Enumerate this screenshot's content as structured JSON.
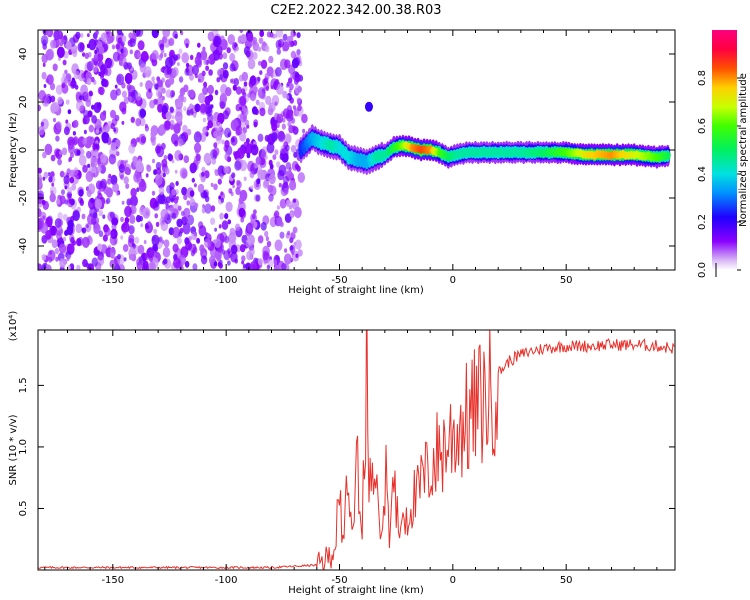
{
  "title": "C2E2.2022.342.00.38.R03",
  "chart_data": [
    {
      "type": "heatmap",
      "xlabel": "Height of straight line (km)",
      "ylabel": "Frequency (Hz)",
      "xlim": [
        -183,
        98
      ],
      "ylim": [
        -50,
        50
      ],
      "xticks": [
        -150,
        -100,
        -50,
        0,
        50
      ],
      "yticks": [
        -40,
        -20,
        0,
        20,
        40
      ],
      "colorbar": {
        "label": "Normalized spectral amplitude",
        "range": [
          0,
          1
        ],
        "ticks": [
          "0.0",
          "0.2",
          "0.4",
          "0.6",
          "0.8"
        ],
        "colormap": "rainbow (violet-blue-cyan-green-yellow-red-magenta)"
      },
      "noise_region": {
        "x": [
          -183,
          -67
        ],
        "frequency": [
          -50,
          50
        ]
      },
      "ridge": {
        "x": [
          -67,
          -62,
          -58,
          -54,
          -50,
          -46,
          -42,
          -38,
          -34,
          -30,
          -26,
          -22,
          -18,
          -14,
          -10,
          -6,
          -2,
          2,
          6,
          10,
          20,
          30,
          40,
          50,
          60,
          70,
          80,
          90,
          96
        ],
        "frequency": [
          0,
          5,
          3,
          2,
          1,
          -3,
          -4,
          -5,
          -3,
          -2,
          1,
          2,
          1,
          0,
          0,
          -1,
          -3,
          -2,
          -1,
          -1,
          -1,
          -1,
          -1,
          -1,
          -2,
          -2,
          -2,
          -3,
          -2
        ],
        "amplitude": [
          0.25,
          0.35,
          0.4,
          0.45,
          0.4,
          0.4,
          0.35,
          0.35,
          0.45,
          0.45,
          0.55,
          0.65,
          0.8,
          0.85,
          0.8,
          0.6,
          0.5,
          0.45,
          0.45,
          0.45,
          0.45,
          0.45,
          0.5,
          0.6,
          0.75,
          0.8,
          0.7,
          0.6,
          0.5
        ]
      },
      "blob": {
        "x": -37,
        "frequency": 18,
        "amplitude": 0.2
      }
    },
    {
      "type": "line",
      "xlabel": "Height of straight line (km)",
      "ylabel": "SNR (10 * v/v)",
      "yscale_label": "(x10⁴)",
      "xlim": [
        -183,
        98
      ],
      "ylim": [
        0,
        1.95
      ],
      "xticks": [
        -150,
        -100,
        -50,
        0,
        50
      ],
      "yticks": [
        0.5,
        1.0,
        1.5
      ],
      "color": "#e8302a",
      "series": [
        {
          "x": [
            -183,
            -120,
            -80,
            -70,
            -60,
            -55,
            -52,
            -50,
            -48,
            -46,
            -44,
            -42,
            -40,
            -38,
            -36,
            -34,
            -32,
            -30,
            -28,
            -26,
            -24,
            -22,
            -20,
            -18,
            -16,
            -14,
            -12,
            -10,
            -8,
            -6,
            -4,
            -2,
            0,
            2,
            4,
            6,
            8,
            10,
            12,
            15,
            18,
            20,
            25,
            30,
            35,
            40,
            50,
            60,
            70,
            80,
            90,
            98
          ],
          "values": [
            0.02,
            0.02,
            0.02,
            0.03,
            0.04,
            0.1,
            0.2,
            0.55,
            0.35,
            0.85,
            0.3,
            0.9,
            0.5,
            1.3,
            0.6,
            1.1,
            0.4,
            0.8,
            0.35,
            0.7,
            0.3,
            0.5,
            0.45,
            0.6,
            0.55,
            0.7,
            0.75,
            0.85,
            0.9,
            0.95,
            1.0,
            1.05,
            1.1,
            1.15,
            1.2,
            1.2,
            1.25,
            1.3,
            1.35,
            1.4,
            1.5,
            1.6,
            1.7,
            1.75,
            1.78,
            1.8,
            1.82,
            1.82,
            1.83,
            1.83,
            1.82,
            1.8
          ]
        }
      ]
    }
  ]
}
